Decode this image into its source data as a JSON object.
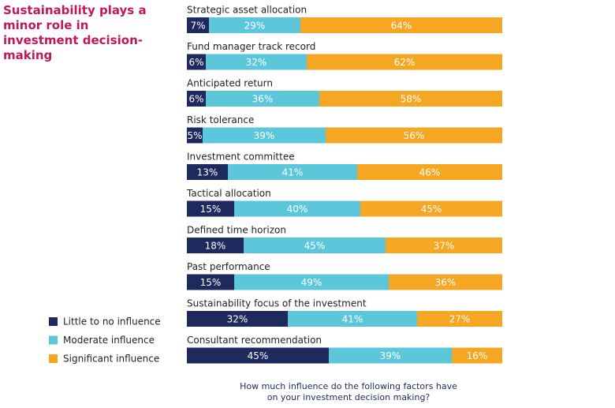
{
  "chart_data": {
    "type": "stacked_bar_horizontal",
    "title": "Sustainability plays a minor role in investment decision-making",
    "footnote": "How much influence do the following factors have on your investment decision making?",
    "categories": [
      "Strategic asset allocation",
      "Fund manager track record",
      "Anticipated return",
      "Risk tolerance",
      "Investment committee",
      "Tactical allocation",
      "Defined time horizon",
      "Past performance",
      "Sustainability focus of the investment",
      "Consultant recommendation"
    ],
    "series": [
      {
        "name": "Little to no influence",
        "color": "#1e2a5e",
        "values": [
          7,
          6,
          6,
          5,
          13,
          15,
          18,
          15,
          32,
          45
        ],
        "value_labels": [
          "7%",
          "6%",
          "6%",
          "5%",
          "13%",
          "15%",
          "18%",
          "15%",
          "32%",
          "45%"
        ]
      },
      {
        "name": "Moderate influence",
        "color": "#5cc6da",
        "values": [
          29,
          32,
          36,
          39,
          41,
          40,
          45,
          49,
          41,
          39
        ],
        "value_labels": [
          "29%",
          "32%",
          "36%",
          "39%",
          "41%",
          "40%",
          "45%",
          "49%",
          "41%",
          "39%"
        ]
      },
      {
        "name": "Significant influence",
        "color": "#f5a623",
        "values": [
          64,
          62,
          58,
          56,
          46,
          45,
          37,
          36,
          27,
          16
        ],
        "value_labels": [
          "64%",
          "62%",
          "58%",
          "56%",
          "46%",
          "45%",
          "37%",
          "36%",
          "27%",
          "16%"
        ]
      }
    ]
  }
}
